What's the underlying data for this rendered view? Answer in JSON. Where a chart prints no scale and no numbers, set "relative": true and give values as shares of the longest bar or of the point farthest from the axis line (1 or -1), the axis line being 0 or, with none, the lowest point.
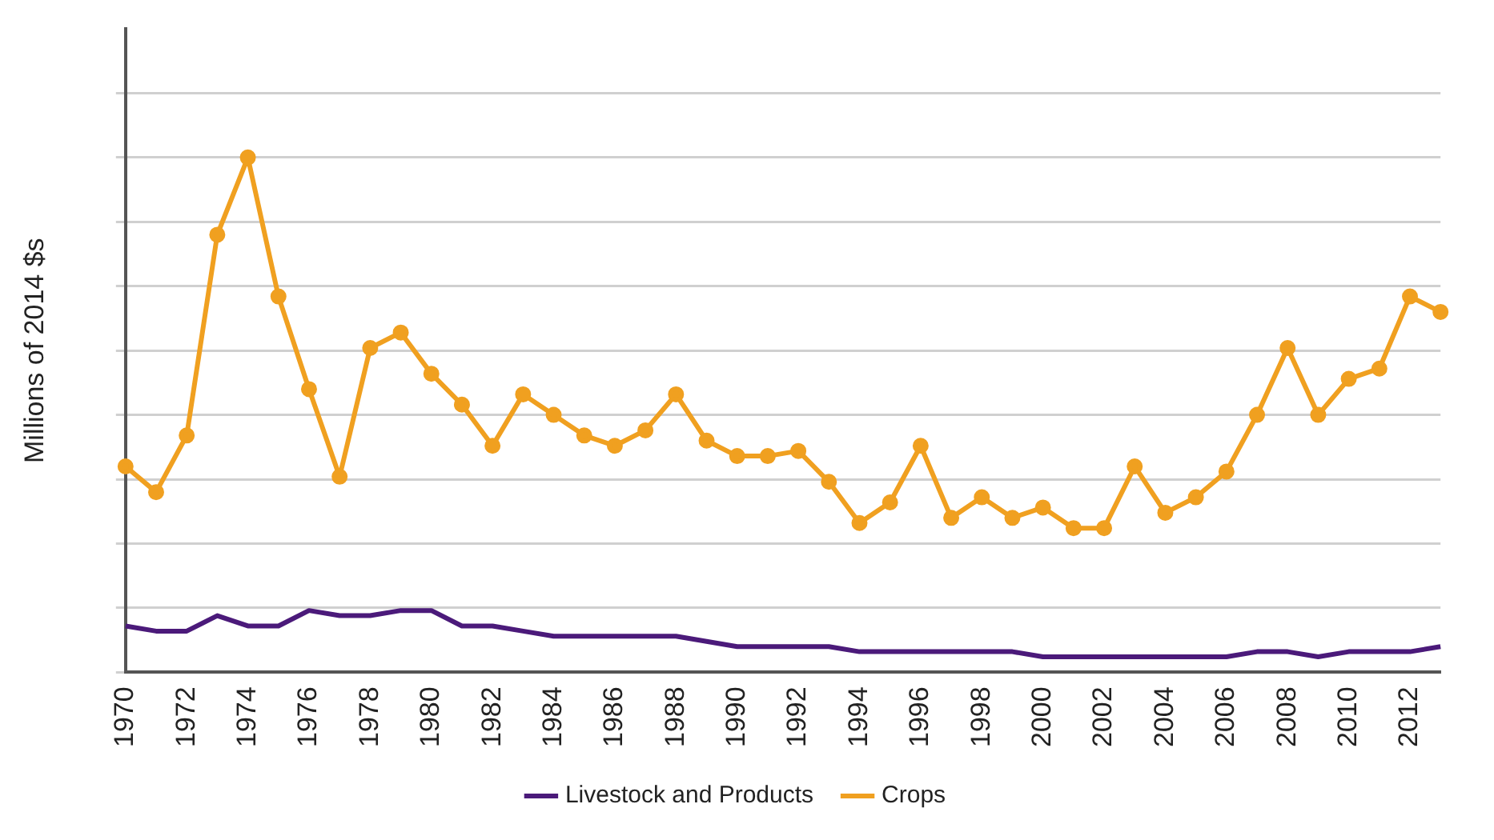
{
  "chart_data": {
    "type": "line",
    "ylabel": "Millions of 2014 $s",
    "relative": true,
    "grid": "y",
    "legend": "bottom",
    "categories": [
      "1970",
      null,
      "1972",
      null,
      "1974",
      null,
      "1976",
      null,
      "1978",
      null,
      "1980",
      null,
      "1982",
      null,
      "1984",
      null,
      "1986",
      null,
      "1988",
      null,
      "1990",
      null,
      "1992",
      null,
      "1994",
      null,
      "1996",
      null,
      "1998",
      null,
      "2000",
      null,
      "2002",
      null,
      "2004",
      null,
      "2006",
      null,
      "2008",
      null,
      "2010",
      null,
      "2012",
      null
    ],
    "series": [
      {
        "name": "Livestock and Products",
        "color": "#4b1a7a",
        "marker": "none",
        "values": [
          0.09,
          0.08,
          0.08,
          0.11,
          0.09,
          0.09,
          0.12,
          0.11,
          0.11,
          0.12,
          0.12,
          0.09,
          0.09,
          0.08,
          0.07,
          0.07,
          0.07,
          0.07,
          0.07,
          0.06,
          0.05,
          0.05,
          0.05,
          0.05,
          0.04,
          0.04,
          0.04,
          0.04,
          0.04,
          0.04,
          0.03,
          0.03,
          0.03,
          0.03,
          0.03,
          0.03,
          0.03,
          0.04,
          0.04,
          0.03,
          0.04,
          0.04,
          0.04,
          0.05
        ]
      },
      {
        "name": "Crops",
        "color": "#f0a020",
        "marker": "circle",
        "values": [
          0.4,
          0.35,
          0.46,
          0.85,
          1,
          0.73,
          0.55,
          0.38,
          0.63,
          0.66,
          0.58,
          0.52,
          0.44,
          0.54,
          0.5,
          0.46,
          0.44,
          0.47,
          0.54,
          0.45,
          0.42,
          0.42,
          0.43,
          0.37,
          0.29,
          0.33,
          0.44,
          0.3,
          0.34,
          0.3,
          0.32,
          0.28,
          0.28,
          0.4,
          0.31,
          0.34,
          0.39,
          0.5,
          0.63,
          0.5,
          0.57,
          0.59,
          0.73,
          0.7
        ]
      }
    ]
  }
}
